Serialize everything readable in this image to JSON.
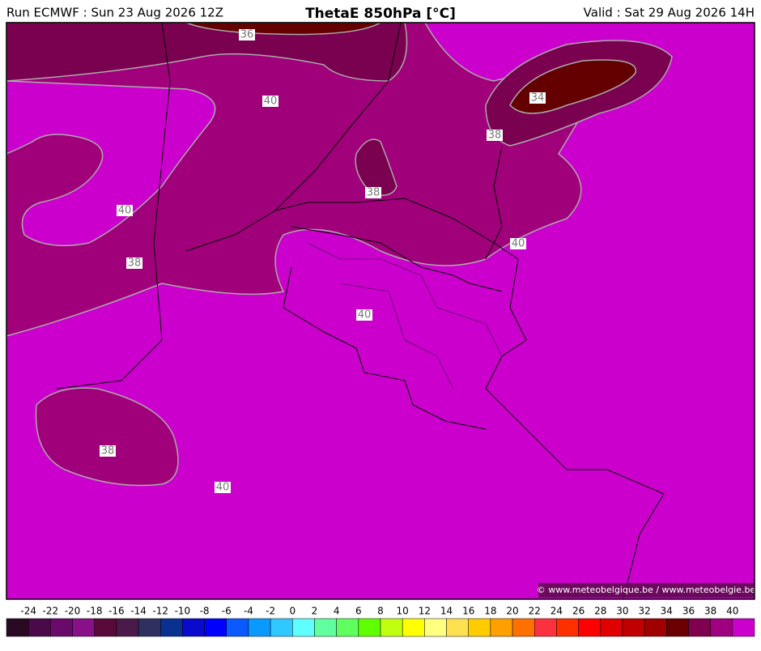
{
  "header": {
    "run": "Run ECMWF : Sun 23 Aug 2026 12Z",
    "title": "ThetaE 850hPa [°C]",
    "valid": "Valid : Sat 29 Aug 2026 14H"
  },
  "map": {
    "contour_labels": [
      "36",
      "40",
      "34",
      "38",
      "38",
      "40",
      "38",
      "40",
      "40",
      "38",
      "40"
    ],
    "copyright": "© www.meteobelgique.be / www.meteobelgie.be"
  },
  "colorbar": {
    "ticks": [
      -24,
      -22,
      -20,
      -18,
      -16,
      -14,
      -12,
      -10,
      -8,
      -6,
      -4,
      -2,
      0,
      2,
      4,
      6,
      8,
      10,
      12,
      14,
      16,
      18,
      20,
      22,
      24,
      26,
      28,
      30,
      32,
      34,
      36,
      38,
      40
    ],
    "colors": [
      "#2a0a22",
      "#4a0a4a",
      "#6a0a6a",
      "#881088",
      "#5a0a3a",
      "#4a1a4a",
      "#303060",
      "#0a3090",
      "#0a0acc",
      "#0000ff",
      "#0a5aff",
      "#0a9aff",
      "#30c8ff",
      "#60ffff",
      "#60ffa0",
      "#60ff60",
      "#60ff00",
      "#c0ff10",
      "#ffff00",
      "#ffff80",
      "#ffe050",
      "#ffcc00",
      "#ffa000",
      "#ff7000",
      "#ff3040",
      "#ff3000",
      "#ff0000",
      "#e00000",
      "#c00000",
      "#a00000",
      "#6a0000",
      "#800050",
      "#a00080",
      "#cc00cc"
    ]
  }
}
